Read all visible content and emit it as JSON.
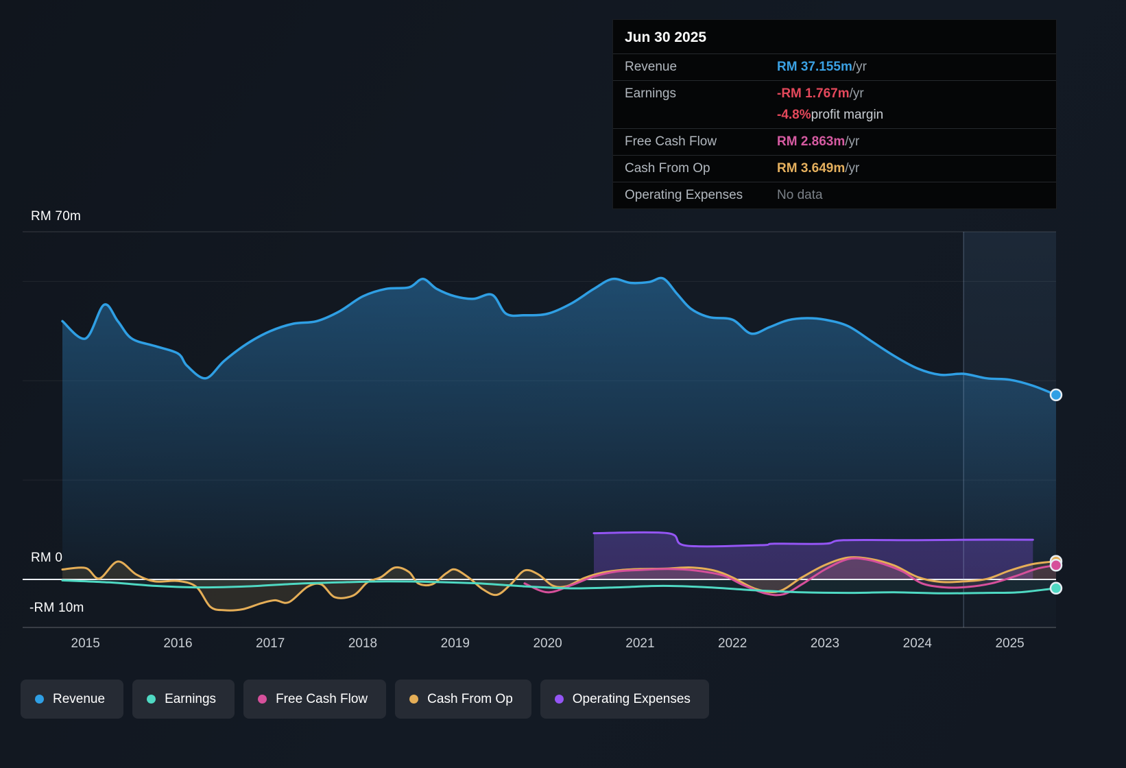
{
  "tooltip": {
    "date": "Jun 30 2025",
    "rows": [
      {
        "label": "Revenue",
        "value": "RM 37.155m",
        "suffix": " /yr",
        "value_color": "#3ba1e3",
        "suffix_color": "#9aa1a8",
        "value_weight": "bold"
      },
      {
        "label": "Earnings",
        "value": "-RM 1.767m",
        "suffix": " /yr",
        "value_color": "#e4485b",
        "suffix_color": "#9aa1a8",
        "value_weight": "bold"
      },
      {
        "label": "",
        "value": "-4.8%",
        "suffix": " profit margin",
        "value_color": "#e4485b",
        "suffix_color": "#c9ced4",
        "value_weight": "bold"
      },
      {
        "label": "Free Cash Flow",
        "value": "RM 2.863m",
        "suffix": " /yr",
        "value_color": "#d65ba2",
        "suffix_color": "#9aa1a8",
        "value_weight": "bold"
      },
      {
        "label": "Cash From Op",
        "value": "RM 3.649m",
        "suffix": " /yr",
        "value_color": "#e5b05e",
        "suffix_color": "#9aa1a8",
        "value_weight": "bold"
      },
      {
        "label": "Operating Expenses",
        "value": "No data",
        "suffix": "",
        "value_color": "#7b8188",
        "suffix_color": "#9aa1a8",
        "value_weight": "normal"
      }
    ]
  },
  "legend": [
    {
      "label": "Revenue",
      "color": "#2f9fe4"
    },
    {
      "label": "Earnings",
      "color": "#4fd9c3"
    },
    {
      "label": "Free Cash Flow",
      "color": "#d6509b"
    },
    {
      "label": "Cash From Op",
      "color": "#e5ae57"
    },
    {
      "label": "Operating Expenses",
      "color": "#9455f4"
    }
  ],
  "chart_data": {
    "type": "line",
    "title": "",
    "currency_unit": "RM millions",
    "x_axis": {
      "min": 2014.32,
      "max": 2025.5,
      "ticks": [
        2015,
        2016,
        2017,
        2018,
        2019,
        2020,
        2021,
        2022,
        2023,
        2024,
        2025
      ]
    },
    "y_axis": {
      "scale_top_value": 70,
      "labels": [
        {
          "text": "RM 70m",
          "value": 70
        },
        {
          "text": "RM 0",
          "value": 0
        },
        {
          "text": "-RM 10m",
          "value": -10
        }
      ],
      "gridlines": [
        70,
        60,
        40,
        20
      ],
      "zero_line": 0,
      "axis_bottom": -10
    },
    "divider_x": 2024.5,
    "series": [
      {
        "key": "revenue",
        "name": "Revenue",
        "color": "#2f9fe4",
        "width": 3.5,
        "fill": "gradient",
        "marker": true,
        "points": [
          [
            2014.75,
            52
          ],
          [
            2015.0,
            48.5
          ],
          [
            2015.2,
            55.3
          ],
          [
            2015.35,
            52
          ],
          [
            2015.5,
            48.5
          ],
          [
            2015.75,
            47
          ],
          [
            2016.0,
            45.5
          ],
          [
            2016.1,
            43
          ],
          [
            2016.3,
            40.5
          ],
          [
            2016.5,
            44
          ],
          [
            2016.75,
            47.5
          ],
          [
            2017.0,
            50
          ],
          [
            2017.25,
            51.5
          ],
          [
            2017.5,
            52
          ],
          [
            2017.75,
            54
          ],
          [
            2018.0,
            57
          ],
          [
            2018.25,
            58.5
          ],
          [
            2018.5,
            58.8
          ],
          [
            2018.65,
            60.5
          ],
          [
            2018.8,
            58.5
          ],
          [
            2019.0,
            57
          ],
          [
            2019.2,
            56.5
          ],
          [
            2019.4,
            57.3
          ],
          [
            2019.55,
            53.5
          ],
          [
            2019.75,
            53.2
          ],
          [
            2020.0,
            53.5
          ],
          [
            2020.25,
            55.5
          ],
          [
            2020.5,
            58.5
          ],
          [
            2020.7,
            60.5
          ],
          [
            2020.9,
            59.7
          ],
          [
            2021.1,
            59.9
          ],
          [
            2021.25,
            60.6
          ],
          [
            2021.4,
            57.5
          ],
          [
            2021.55,
            54.5
          ],
          [
            2021.75,
            52.8
          ],
          [
            2022.0,
            52.3
          ],
          [
            2022.2,
            49.5
          ],
          [
            2022.4,
            50.8
          ],
          [
            2022.6,
            52.2
          ],
          [
            2022.8,
            52.6
          ],
          [
            2023.0,
            52.3
          ],
          [
            2023.25,
            51
          ],
          [
            2023.5,
            48
          ],
          [
            2023.75,
            45
          ],
          [
            2024.0,
            42.5
          ],
          [
            2024.25,
            41.2
          ],
          [
            2024.5,
            41.4
          ],
          [
            2024.75,
            40.5
          ],
          [
            2025.0,
            40.2
          ],
          [
            2025.25,
            39
          ],
          [
            2025.5,
            37.155
          ]
        ]
      },
      {
        "key": "operating-expenses",
        "name": "Operating Expenses",
        "color": "#9455f4",
        "width": 3,
        "fill_opacity": 0.28,
        "marker": false,
        "points": [
          [
            2020.5,
            9.3
          ],
          [
            2021.3,
            9.3
          ],
          [
            2021.5,
            6.8
          ],
          [
            2022.3,
            6.9
          ],
          [
            2022.45,
            7.2
          ],
          [
            2023.0,
            7.2
          ],
          [
            2023.2,
            7.9
          ],
          [
            2024.0,
            7.9
          ],
          [
            2024.6,
            8.0
          ],
          [
            2025.25,
            8.0
          ]
        ]
      },
      {
        "key": "cash-from-op",
        "name": "Cash From Op",
        "color": "#e5ae57",
        "width": 3,
        "fill_opacity": 0.13,
        "marker": true,
        "points": [
          [
            2014.75,
            2
          ],
          [
            2015.0,
            2.3
          ],
          [
            2015.15,
            0.2
          ],
          [
            2015.35,
            3.6
          ],
          [
            2015.55,
            1
          ],
          [
            2015.75,
            -0.4
          ],
          [
            2016.0,
            -0.3
          ],
          [
            2016.2,
            -1.5
          ],
          [
            2016.35,
            -5.5
          ],
          [
            2016.5,
            -6.2
          ],
          [
            2016.7,
            -6
          ],
          [
            2016.9,
            -4.8
          ],
          [
            2017.05,
            -4.2
          ],
          [
            2017.2,
            -4.6
          ],
          [
            2017.4,
            -1.5
          ],
          [
            2017.55,
            -1
          ],
          [
            2017.7,
            -3.6
          ],
          [
            2017.9,
            -3.2
          ],
          [
            2018.05,
            -0.6
          ],
          [
            2018.2,
            0.5
          ],
          [
            2018.35,
            2.4
          ],
          [
            2018.5,
            1.5
          ],
          [
            2018.6,
            -0.8
          ],
          [
            2018.75,
            -1
          ],
          [
            2018.9,
            1.2
          ],
          [
            2019.0,
            2
          ],
          [
            2019.15,
            0.3
          ],
          [
            2019.3,
            -2
          ],
          [
            2019.45,
            -3.1
          ],
          [
            2019.6,
            -1
          ],
          [
            2019.75,
            1.8
          ],
          [
            2019.9,
            1
          ],
          [
            2020.05,
            -1.2
          ],
          [
            2020.2,
            -1.4
          ],
          [
            2020.4,
            0.3
          ],
          [
            2020.6,
            1.4
          ],
          [
            2020.8,
            1.9
          ],
          [
            2021.0,
            2.1
          ],
          [
            2021.3,
            2.2
          ],
          [
            2021.55,
            2.4
          ],
          [
            2021.8,
            1.8
          ],
          [
            2022.0,
            0.4
          ],
          [
            2022.25,
            -1.9
          ],
          [
            2022.5,
            -2.4
          ],
          [
            2022.75,
            0.4
          ],
          [
            2023.0,
            2.9
          ],
          [
            2023.25,
            4.4
          ],
          [
            2023.5,
            4.1
          ],
          [
            2023.75,
            2.8
          ],
          [
            2024.0,
            0.5
          ],
          [
            2024.25,
            -0.5
          ],
          [
            2024.5,
            -0.4
          ],
          [
            2024.75,
            0.1
          ],
          [
            2025.0,
            1.8
          ],
          [
            2025.25,
            3.1
          ],
          [
            2025.5,
            3.649
          ]
        ]
      },
      {
        "key": "free-cash-flow",
        "name": "Free Cash Flow",
        "color": "#d6509b",
        "width": 3,
        "fill_opacity": 0.12,
        "marker": true,
        "points": [
          [
            2019.75,
            -0.8
          ],
          [
            2020.0,
            -2.6
          ],
          [
            2020.25,
            -1.2
          ],
          [
            2020.5,
            0.6
          ],
          [
            2020.75,
            1.6
          ],
          [
            2021.0,
            1.9
          ],
          [
            2021.3,
            2.1
          ],
          [
            2021.6,
            1.8
          ],
          [
            2021.9,
            0.8
          ],
          [
            2022.1,
            -1
          ],
          [
            2022.35,
            -2.8
          ],
          [
            2022.55,
            -3
          ],
          [
            2022.75,
            -1
          ],
          [
            2023.0,
            2
          ],
          [
            2023.25,
            4.1
          ],
          [
            2023.45,
            4
          ],
          [
            2023.65,
            3
          ],
          [
            2023.85,
            1.5
          ],
          [
            2024.05,
            -0.8
          ],
          [
            2024.3,
            -1.6
          ],
          [
            2024.55,
            -1.5
          ],
          [
            2024.8,
            -0.8
          ],
          [
            2025.05,
            0.6
          ],
          [
            2025.3,
            2.2
          ],
          [
            2025.5,
            2.863
          ]
        ]
      },
      {
        "key": "earnings",
        "name": "Earnings",
        "color": "#4fd9c3",
        "width": 3,
        "fill_opacity": 0.07,
        "marker": true,
        "points": [
          [
            2014.75,
            -0.2
          ],
          [
            2015.25,
            -0.6
          ],
          [
            2015.75,
            -1.3
          ],
          [
            2016.25,
            -1.6
          ],
          [
            2016.75,
            -1.4
          ],
          [
            2017.25,
            -0.9
          ],
          [
            2017.75,
            -0.6
          ],
          [
            2018.25,
            -0.4
          ],
          [
            2018.75,
            -0.5
          ],
          [
            2019.25,
            -0.8
          ],
          [
            2019.75,
            -1.4
          ],
          [
            2020.25,
            -1.8
          ],
          [
            2020.75,
            -1.6
          ],
          [
            2021.25,
            -1.3
          ],
          [
            2021.75,
            -1.6
          ],
          [
            2022.25,
            -2.2
          ],
          [
            2022.75,
            -2.6
          ],
          [
            2023.25,
            -2.7
          ],
          [
            2023.75,
            -2.6
          ],
          [
            2024.25,
            -2.8
          ],
          [
            2024.75,
            -2.7
          ],
          [
            2025.1,
            -2.6
          ],
          [
            2025.5,
            -1.767
          ]
        ]
      }
    ]
  }
}
